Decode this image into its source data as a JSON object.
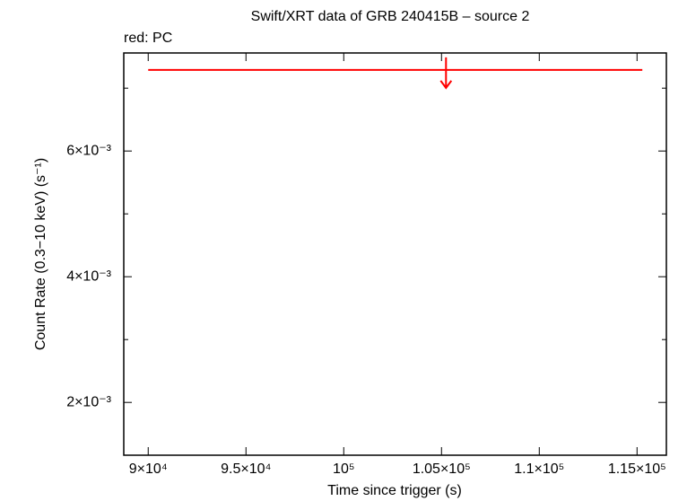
{
  "chart_data": {
    "type": "upper_limit",
    "title": "Swift/XRT data of GRB 240415B – source 2",
    "annotation": "red: PC",
    "x_label": "Time since trigger (s)",
    "y_label": "Count Rate (0.3−10 keV) (s⁻¹)",
    "series": [
      {
        "name": "PC",
        "color": "#ff0000",
        "x": [
          105230
        ],
        "x_start": [
          90000
        ],
        "x_end": [
          115270
        ],
        "values": [
          0.00729
        ]
      }
    ],
    "xlim": [
      88750,
      116500
    ],
    "xticks": [
      {
        "value": 90000,
        "label": "9×10⁴"
      },
      {
        "value": 95000,
        "label": "9.5×10⁴"
      },
      {
        "value": 100000,
        "label": "10⁵"
      },
      {
        "value": 105000,
        "label": "1.05×10⁵"
      },
      {
        "value": 110000,
        "label": "1.1×10⁵"
      },
      {
        "value": 115000,
        "label": "1.15×10⁵"
      }
    ],
    "ylim": [
      0.00116,
      0.00756
    ],
    "yticks": [
      {
        "value": 0.002,
        "label": "2×10⁻³"
      },
      {
        "value": 0.004,
        "label": "4×10⁻³"
      },
      {
        "value": 0.006,
        "label": "6×10⁻³"
      }
    ],
    "yminor_ticks": [
      0.003,
      0.005,
      0.007
    ]
  }
}
